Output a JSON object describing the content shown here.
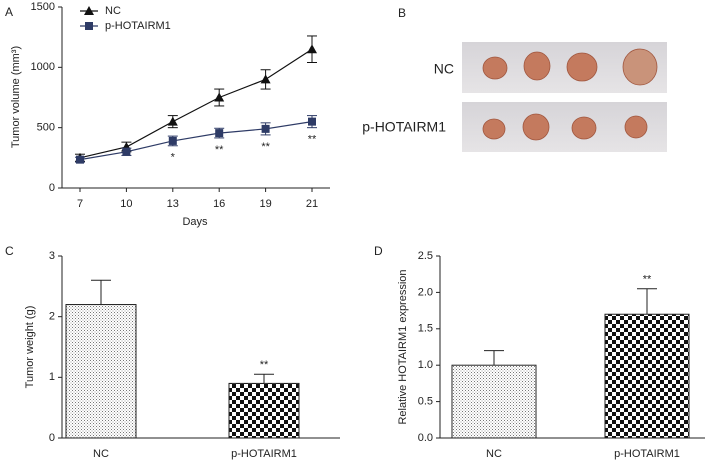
{
  "chart_data": [
    {
      "type": "line",
      "panel_label": "A",
      "x_label": "Days",
      "y_label": "Tumor volume (mm³)",
      "categories": [
        "7",
        "10",
        "13",
        "16",
        "19",
        "21"
      ],
      "series": [
        {
          "name": "NC",
          "color": "#111111",
          "marker": "triangle",
          "values": [
            250,
            340,
            550,
            750,
            900,
            1150
          ],
          "errors": [
            30,
            40,
            50,
            70,
            80,
            110
          ]
        },
        {
          "name": "p-HOTAIRM1",
          "color": "#2e3b66",
          "marker": "square",
          "values": [
            235,
            300,
            390,
            455,
            490,
            550
          ],
          "errors": [
            20,
            30,
            40,
            40,
            50,
            50
          ]
        }
      ],
      "significance": [
        null,
        null,
        "*",
        "**",
        "**",
        "**"
      ],
      "ylim": [
        0,
        1500
      ],
      "yticks": [
        0,
        500,
        1000,
        1500
      ],
      "legend": "upper left"
    },
    {
      "type": "bar",
      "panel_label": "C",
      "y_label": "Tumor weight (g)",
      "categories": [
        "NC",
        "p-HOTAIRM1"
      ],
      "values": [
        2.2,
        0.9
      ],
      "errors": [
        0.4,
        0.15
      ],
      "patterns": [
        "dots",
        "checker"
      ],
      "significance": [
        null,
        "**"
      ],
      "ylim": [
        0,
        3
      ],
      "yticks": [
        0,
        1,
        2,
        3
      ]
    },
    {
      "type": "bar",
      "panel_label": "D",
      "y_label": "Relative HOTAIRM1 expression",
      "categories": [
        "NC",
        "p-HOTAIRM1"
      ],
      "values": [
        1.0,
        1.7
      ],
      "errors": [
        0.2,
        0.35
      ],
      "patterns": [
        "dots",
        "checker"
      ],
      "significance": [
        null,
        "**"
      ],
      "ylim": [
        0,
        2.5
      ],
      "yticks": [
        {
          "value": 0,
          "label": "0.0"
        },
        0.5,
        {
          "value": 1,
          "label": "1.0"
        },
        1.5,
        {
          "value": 2,
          "label": "2.0"
        },
        2.5
      ]
    }
  ],
  "panel_b": {
    "label": "B",
    "row_labels": [
      "NC",
      "p-HOTAIRM1"
    ]
  }
}
